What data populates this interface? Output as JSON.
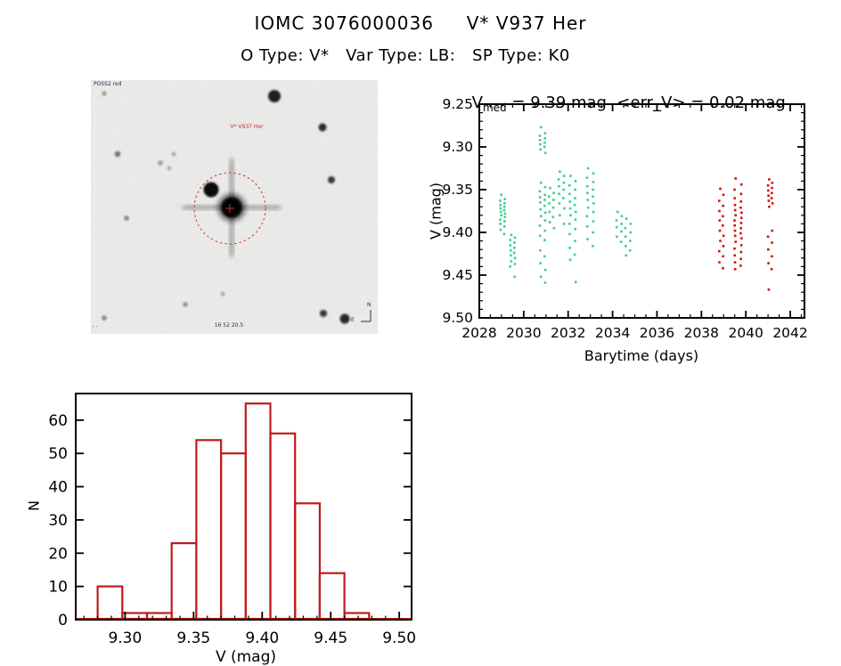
{
  "header": {
    "title": "IOMC 3076000036     V* V937 Her",
    "subtitle": "O Type: V*   Var Type: LB:   SP Type: K0"
  },
  "finder": {
    "survey_label": "POSS2 red",
    "target_label": "V* V937 Her",
    "coords_label": "16 52 20.5",
    "corner_label": ", .",
    "compass": {
      "north": "N",
      "east": "E"
    }
  },
  "colors": {
    "points_green": "#3fcf8e",
    "points_red": "#cd1414",
    "hist_red": "#c01a1a",
    "frame": "#000000",
    "target_circle": "#cc3333"
  },
  "chart_data": [
    {
      "type": "scatter",
      "title_prefix": "V",
      "title_sub": "med",
      "title_rest": " = 9.39 mag  <err_V> = 0.02 mag",
      "v_median_mag": 9.39,
      "v_err_mag": 0.02,
      "xlabel": "Barytime (days)",
      "ylabel": "V (mag)",
      "xlim": [
        2028,
        2042.64
      ],
      "ylim": [
        9.25,
        9.5
      ],
      "y_inverted_axis": true,
      "x_tick_values": [
        2028,
        2030,
        2032,
        2034,
        2036,
        2038,
        2040,
        2042
      ],
      "x_tick_labels": [
        "2028",
        "2030",
        "2032",
        "2034",
        "2036",
        "2038",
        "2040",
        "2042"
      ],
      "x_minor_step": 0.5,
      "y_tick_values": [
        9.25,
        9.3,
        9.35,
        9.4,
        9.45,
        9.5
      ],
      "y_tick_labels": [
        "9.25",
        "9.30",
        "9.35",
        "9.40",
        "9.45",
        "9.50"
      ],
      "y_minor_step": 0.01,
      "legend": [
        {
          "name": "epoch-1-points",
          "color_key": "points_green"
        },
        {
          "name": "epoch-2-points",
          "color_key": "points_red"
        }
      ],
      "clusters": [
        {
          "day": 2029.05,
          "color": "green",
          "sep": 0.12,
          "mags": [
            9.356,
            9.361,
            9.363,
            9.366,
            9.368,
            9.37,
            9.372,
            9.374,
            9.376,
            9.378,
            9.38,
            9.382,
            9.385,
            9.387,
            9.39,
            9.393,
            9.397,
            9.402
          ]
        },
        {
          "day": 2029.5,
          "color": "green",
          "sep": 0.12,
          "mags": [
            9.403,
            9.406,
            9.409,
            9.412,
            9.415,
            9.418,
            9.421,
            9.424,
            9.427,
            9.43,
            9.434,
            9.437,
            9.44,
            9.452
          ]
        },
        {
          "day": 2030.85,
          "color": "green",
          "sep": 0.15,
          "mags": [
            9.277,
            9.284,
            9.287,
            9.29,
            9.292,
            9.295,
            9.297,
            9.3,
            9.303,
            9.307,
            9.342,
            9.347,
            9.352,
            9.356,
            9.359,
            9.362,
            9.365,
            9.369,
            9.373,
            9.377,
            9.381,
            9.386,
            9.392,
            9.398,
            9.404,
            9.409,
            9.421,
            9.428,
            9.436,
            9.444,
            9.452,
            9.459
          ]
        },
        {
          "day": 2031.25,
          "color": "green",
          "sep": 0.12,
          "mags": [
            9.348,
            9.354,
            9.358,
            9.362,
            9.366,
            9.371,
            9.376,
            9.382,
            9.388,
            9.395
          ]
        },
        {
          "day": 2031.7,
          "color": "green",
          "sep": 0.15,
          "mags": [
            9.329,
            9.334,
            9.338,
            9.342,
            9.346,
            9.35,
            9.355,
            9.36,
            9.366,
            9.372,
            9.38,
            9.39
          ]
        },
        {
          "day": 2032.2,
          "color": "green",
          "sep": 0.18,
          "mags": [
            9.334,
            9.34,
            9.345,
            9.35,
            9.355,
            9.36,
            9.364,
            9.368,
            9.372,
            9.376,
            9.38,
            9.385,
            9.39,
            9.396,
            9.402,
            9.41,
            9.418,
            9.426,
            9.432,
            9.458
          ]
        },
        {
          "day": 2033.0,
          "color": "green",
          "sep": 0.2,
          "mags": [
            9.325,
            9.331,
            9.336,
            9.341,
            9.346,
            9.35,
            9.354,
            9.358,
            9.362,
            9.366,
            9.371,
            9.376,
            9.381,
            9.387,
            9.393,
            9.4,
            9.408,
            9.416
          ]
        },
        {
          "day": 2034.3,
          "color": "green",
          "sep": 0.15,
          "mags": [
            9.376,
            9.381,
            9.386,
            9.39,
            9.394,
            9.399,
            9.405,
            9.411
          ]
        },
        {
          "day": 2034.7,
          "color": "green",
          "sep": 0.15,
          "mags": [
            9.384,
            9.39,
            9.395,
            9.4,
            9.405,
            9.41,
            9.416,
            9.421,
            9.427
          ]
        },
        {
          "day": 2038.9,
          "color": "red",
          "sep": 0.1,
          "mags": [
            9.349,
            9.356,
            9.363,
            9.369,
            9.375,
            9.381,
            9.386,
            9.392,
            9.398,
            9.404,
            9.41,
            9.416,
            9.422,
            9.428,
            9.435,
            9.442
          ]
        },
        {
          "day": 2039.65,
          "color": "red",
          "sep": 0.22,
          "mags": [
            9.337,
            9.344,
            9.35,
            9.355,
            9.36,
            9.364,
            9.368,
            9.371,
            9.374,
            9.377,
            9.38,
            9.383,
            9.386,
            9.389,
            9.392,
            9.395,
            9.398,
            9.401,
            9.404,
            9.407,
            9.411,
            9.415,
            9.419,
            9.423,
            9.427,
            9.431,
            9.435,
            9.439,
            9.443
          ]
        },
        {
          "day": 2041.1,
          "color": "red",
          "sep": 0.1,
          "mags": [
            9.338,
            9.342,
            9.345,
            9.348,
            9.351,
            9.354,
            9.357,
            9.36,
            9.363,
            9.366,
            9.37,
            9.398,
            9.405,
            9.412,
            9.42,
            9.428,
            9.436,
            9.443,
            9.467
          ]
        }
      ]
    },
    {
      "type": "bar",
      "subtype": "histogram",
      "xlabel": "V (mag)",
      "ylabel": "N",
      "xlim": [
        9.264,
        9.509
      ],
      "ylim": [
        0,
        68
      ],
      "bin_start": 9.28,
      "bin_width": 0.018,
      "counts": [
        10,
        2,
        2,
        23,
        54,
        50,
        65,
        56,
        35,
        14,
        2
      ],
      "x_tick_values": [
        9.3,
        9.35,
        9.4,
        9.45,
        9.5
      ],
      "x_tick_labels": [
        "9.30",
        "9.35",
        "9.40",
        "9.45",
        "9.50"
      ],
      "x_minor_step": 0.01,
      "y_tick_values": [
        0,
        10,
        20,
        30,
        40,
        50,
        60
      ],
      "y_tick_labels": [
        "0",
        "10",
        "20",
        "30",
        "40",
        "50",
        "60"
      ]
    }
  ]
}
